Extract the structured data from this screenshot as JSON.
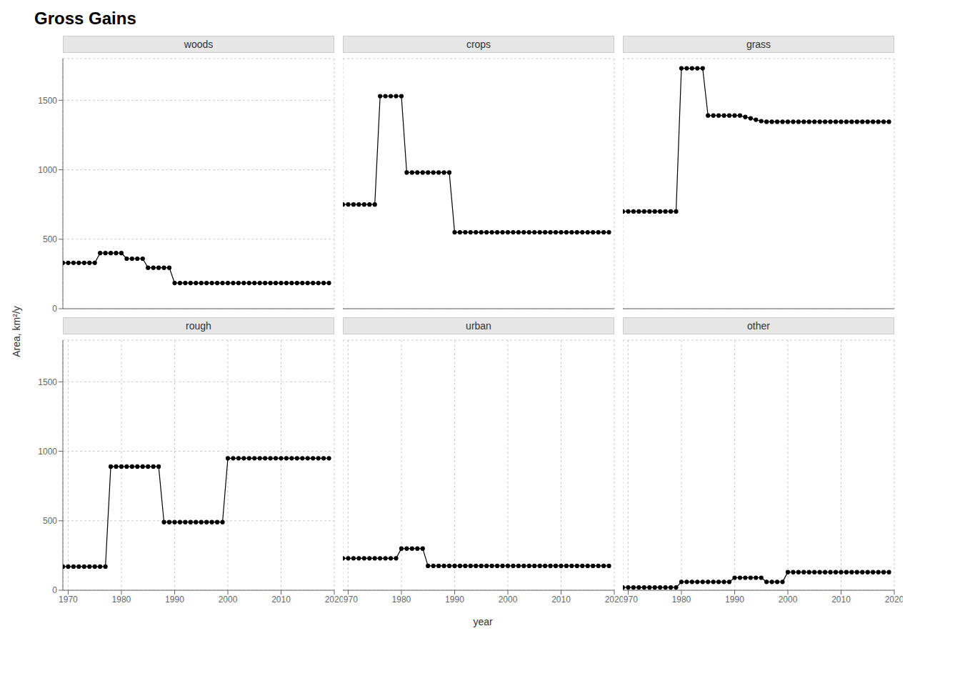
{
  "title": "Gross Gains",
  "xlabel": "year",
  "ylabel": "Area, km²/y",
  "chart_data": [
    {
      "type": "line",
      "title": "woods",
      "x": [
        1969,
        1970,
        1971,
        1972,
        1973,
        1974,
        1975,
        1976,
        1977,
        1978,
        1979,
        1980,
        1981,
        1982,
        1983,
        1984,
        1985,
        1986,
        1987,
        1988,
        1989,
        1990,
        1991,
        1992,
        1993,
        1994,
        1995,
        1996,
        1997,
        1998,
        1999,
        2000,
        2001,
        2002,
        2003,
        2004,
        2005,
        2006,
        2007,
        2008,
        2009,
        2010,
        2011,
        2012,
        2013,
        2014,
        2015,
        2016,
        2017,
        2018,
        2019
      ],
      "values": [
        330,
        330,
        330,
        330,
        330,
        330,
        330,
        400,
        400,
        400,
        400,
        400,
        360,
        360,
        360,
        360,
        295,
        295,
        295,
        295,
        295,
        185,
        185,
        185,
        185,
        185,
        185,
        185,
        185,
        185,
        185,
        185,
        185,
        185,
        185,
        185,
        185,
        185,
        185,
        185,
        185,
        185,
        185,
        185,
        185,
        185,
        185,
        185,
        185,
        185,
        185
      ],
      "xlim": [
        1969,
        2020
      ],
      "xticks": [
        1970,
        1980,
        1990,
        2000,
        2010,
        2020
      ],
      "ylim": [
        0,
        1800
      ],
      "yticks": [
        0,
        500,
        1000,
        1500
      ],
      "grid": true,
      "color": "#000000",
      "marker": "circle",
      "tick_labels": "y"
    },
    {
      "type": "line",
      "title": "crops",
      "x": [
        1969,
        1970,
        1971,
        1972,
        1973,
        1974,
        1975,
        1976,
        1977,
        1978,
        1979,
        1980,
        1981,
        1982,
        1983,
        1984,
        1985,
        1986,
        1987,
        1988,
        1989,
        1990,
        1991,
        1992,
        1993,
        1994,
        1995,
        1996,
        1997,
        1998,
        1999,
        2000,
        2001,
        2002,
        2003,
        2004,
        2005,
        2006,
        2007,
        2008,
        2009,
        2010,
        2011,
        2012,
        2013,
        2014,
        2015,
        2016,
        2017,
        2018,
        2019
      ],
      "values": [
        750,
        750,
        750,
        750,
        750,
        750,
        750,
        1530,
        1530,
        1530,
        1530,
        1530,
        980,
        980,
        980,
        980,
        980,
        980,
        980,
        980,
        980,
        550,
        550,
        550,
        550,
        550,
        550,
        550,
        550,
        550,
        550,
        550,
        550,
        550,
        550,
        550,
        550,
        550,
        550,
        550,
        550,
        550,
        550,
        550,
        550,
        550,
        550,
        550,
        550,
        550,
        550
      ],
      "xlim": [
        1969,
        2020
      ],
      "xticks": [
        1970,
        1980,
        1990,
        2000,
        2010,
        2020
      ],
      "ylim": [
        0,
        1800
      ],
      "yticks": [
        0,
        500,
        1000,
        1500
      ],
      "grid": true,
      "color": "#000000",
      "marker": "circle",
      "tick_labels": false
    },
    {
      "type": "line",
      "title": "grass",
      "x": [
        1969,
        1970,
        1971,
        1972,
        1973,
        1974,
        1975,
        1976,
        1977,
        1978,
        1979,
        1980,
        1981,
        1982,
        1983,
        1984,
        1985,
        1986,
        1987,
        1988,
        1989,
        1990,
        1991,
        1992,
        1993,
        1994,
        1995,
        1996,
        1997,
        1998,
        1999,
        2000,
        2001,
        2002,
        2003,
        2004,
        2005,
        2006,
        2007,
        2008,
        2009,
        2010,
        2011,
        2012,
        2013,
        2014,
        2015,
        2016,
        2017,
        2018,
        2019
      ],
      "values": [
        700,
        700,
        700,
        700,
        700,
        700,
        700,
        700,
        700,
        700,
        700,
        1730,
        1730,
        1730,
        1730,
        1730,
        1390,
        1390,
        1390,
        1390,
        1390,
        1390,
        1390,
        1380,
        1370,
        1360,
        1350,
        1345,
        1345,
        1345,
        1345,
        1345,
        1345,
        1345,
        1345,
        1345,
        1345,
        1345,
        1345,
        1345,
        1345,
        1345,
        1345,
        1345,
        1345,
        1345,
        1345,
        1345,
        1345,
        1345,
        1345
      ],
      "xlim": [
        1969,
        2020
      ],
      "xticks": [
        1970,
        1980,
        1990,
        2000,
        2010,
        2020
      ],
      "ylim": [
        0,
        1800
      ],
      "yticks": [
        0,
        500,
        1000,
        1500
      ],
      "grid": true,
      "color": "#000000",
      "marker": "circle",
      "tick_labels": false
    },
    {
      "type": "line",
      "title": "rough",
      "x": [
        1969,
        1970,
        1971,
        1972,
        1973,
        1974,
        1975,
        1976,
        1977,
        1978,
        1979,
        1980,
        1981,
        1982,
        1983,
        1984,
        1985,
        1986,
        1987,
        1988,
        1989,
        1990,
        1991,
        1992,
        1993,
        1994,
        1995,
        1996,
        1997,
        1998,
        1999,
        2000,
        2001,
        2002,
        2003,
        2004,
        2005,
        2006,
        2007,
        2008,
        2009,
        2010,
        2011,
        2012,
        2013,
        2014,
        2015,
        2016,
        2017,
        2018,
        2019
      ],
      "values": [
        170,
        170,
        170,
        170,
        170,
        170,
        170,
        170,
        170,
        890,
        890,
        890,
        890,
        890,
        890,
        890,
        890,
        890,
        890,
        490,
        490,
        490,
        490,
        490,
        490,
        490,
        490,
        490,
        490,
        490,
        490,
        950,
        950,
        950,
        950,
        950,
        950,
        950,
        950,
        950,
        950,
        950,
        950,
        950,
        950,
        950,
        950,
        950,
        950,
        950,
        950
      ],
      "xlim": [
        1969,
        2020
      ],
      "xticks": [
        1970,
        1980,
        1990,
        2000,
        2010,
        2020
      ],
      "ylim": [
        0,
        1800
      ],
      "yticks": [
        0,
        500,
        1000,
        1500
      ],
      "grid": true,
      "color": "#000000",
      "marker": "circle"
    },
    {
      "type": "line",
      "title": "urban",
      "x": [
        1969,
        1970,
        1971,
        1972,
        1973,
        1974,
        1975,
        1976,
        1977,
        1978,
        1979,
        1980,
        1981,
        1982,
        1983,
        1984,
        1985,
        1986,
        1987,
        1988,
        1989,
        1990,
        1991,
        1992,
        1993,
        1994,
        1995,
        1996,
        1997,
        1998,
        1999,
        2000,
        2001,
        2002,
        2003,
        2004,
        2005,
        2006,
        2007,
        2008,
        2009,
        2010,
        2011,
        2012,
        2013,
        2014,
        2015,
        2016,
        2017,
        2018,
        2019
      ],
      "values": [
        230,
        230,
        230,
        230,
        230,
        230,
        230,
        230,
        230,
        230,
        230,
        300,
        300,
        300,
        300,
        300,
        175,
        175,
        175,
        175,
        175,
        175,
        175,
        175,
        175,
        175,
        175,
        175,
        175,
        175,
        175,
        175,
        175,
        175,
        175,
        175,
        175,
        175,
        175,
        175,
        175,
        175,
        175,
        175,
        175,
        175,
        175,
        175,
        175,
        175,
        175
      ],
      "xlim": [
        1969,
        2020
      ],
      "xticks": [
        1970,
        1980,
        1990,
        2000,
        2010,
        2020
      ],
      "ylim": [
        0,
        1800
      ],
      "yticks": [
        0,
        500,
        1000,
        1500
      ],
      "grid": true,
      "color": "#000000",
      "marker": "circle",
      "tick_labels": "x"
    },
    {
      "type": "line",
      "title": "other",
      "x": [
        1969,
        1970,
        1971,
        1972,
        1973,
        1974,
        1975,
        1976,
        1977,
        1978,
        1979,
        1980,
        1981,
        1982,
        1983,
        1984,
        1985,
        1986,
        1987,
        1988,
        1989,
        1990,
        1991,
        1992,
        1993,
        1994,
        1995,
        1996,
        1997,
        1998,
        1999,
        2000,
        2001,
        2002,
        2003,
        2004,
        2005,
        2006,
        2007,
        2008,
        2009,
        2010,
        2011,
        2012,
        2013,
        2014,
        2015,
        2016,
        2017,
        2018,
        2019
      ],
      "values": [
        20,
        20,
        20,
        20,
        20,
        20,
        20,
        20,
        20,
        20,
        20,
        60,
        60,
        60,
        60,
        60,
        60,
        60,
        60,
        60,
        60,
        90,
        90,
        90,
        90,
        90,
        90,
        60,
        60,
        60,
        60,
        130,
        130,
        130,
        130,
        130,
        130,
        130,
        130,
        130,
        130,
        130,
        130,
        130,
        130,
        130,
        130,
        130,
        130,
        130,
        130
      ],
      "xlim": [
        1969,
        2020
      ],
      "xticks": [
        1970,
        1980,
        1990,
        2000,
        2010,
        2020
      ],
      "ylim": [
        0,
        1800
      ],
      "yticks": [
        0,
        500,
        1000,
        1500
      ],
      "grid": true,
      "color": "#000000",
      "marker": "circle",
      "tick_labels": "x"
    }
  ]
}
